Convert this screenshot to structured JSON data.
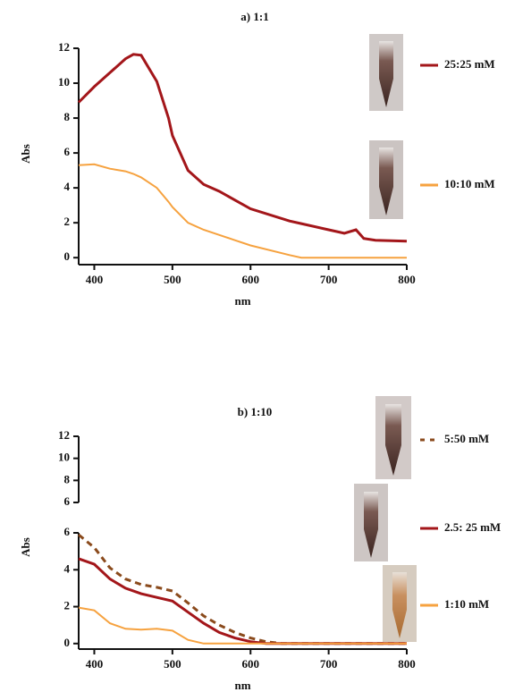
{
  "chart_data": [
    {
      "type": "line",
      "title": "a) 1:1",
      "y_label": "Abs",
      "x_label": "nm",
      "x": [
        380,
        400,
        420,
        440,
        450,
        460,
        480,
        495,
        500,
        520,
        540,
        560,
        580,
        600,
        650,
        665,
        700,
        720,
        735,
        745,
        760,
        800
      ],
      "series": [
        {
          "name": "25:25 mM",
          "color": "#a3161a",
          "linestyle": "solid",
          "values": [
            8.9,
            9.8,
            10.6,
            11.4,
            11.65,
            11.6,
            10.1,
            8.0,
            7.0,
            5.0,
            4.2,
            3.8,
            3.3,
            2.8,
            2.1,
            1.95,
            1.6,
            1.4,
            1.6,
            1.1,
            1.0,
            0.95
          ]
        },
        {
          "name": "10:10 mM",
          "color": "#f6a23f",
          "linestyle": "solid",
          "values": [
            5.3,
            5.35,
            5.1,
            4.95,
            4.8,
            4.6,
            4.0,
            3.2,
            2.9,
            2.0,
            1.6,
            1.3,
            1.0,
            0.7,
            0.15,
            0,
            0,
            0,
            0,
            0,
            0,
            0
          ]
        }
      ],
      "xlim": [
        380,
        800
      ],
      "xticks": [
        400,
        500,
        600,
        700,
        800
      ],
      "ylim": [
        -0.4,
        12
      ],
      "yticks": [
        0,
        2,
        4,
        6,
        8,
        10,
        12
      ]
    },
    {
      "type": "line",
      "title": "b) 1:10",
      "y_label": "Abs",
      "x_label": "nm",
      "x": [
        380,
        400,
        420,
        440,
        460,
        480,
        500,
        520,
        540,
        560,
        580,
        600,
        620,
        640,
        700,
        800
      ],
      "series": [
        {
          "name": "5:50 mM",
          "color": "#8a4a1c",
          "linestyle": "dashed",
          "values": [
            5.9,
            5.2,
            4.1,
            3.5,
            3.2,
            3.05,
            2.85,
            2.2,
            1.5,
            1.0,
            0.6,
            0.3,
            0.1,
            0,
            0,
            0
          ]
        },
        {
          "name": "2.5: 25 mM",
          "color": "#a3161a",
          "linestyle": "solid",
          "values": [
            4.6,
            4.3,
            3.5,
            3.0,
            2.7,
            2.5,
            2.3,
            1.7,
            1.1,
            0.6,
            0.3,
            0.1,
            0,
            0,
            0,
            0
          ]
        },
        {
          "name": "1:10 mM",
          "color": "#f6a23f",
          "linestyle": "solid",
          "values": [
            1.95,
            1.8,
            1.1,
            0.8,
            0.75,
            0.8,
            0.7,
            0.2,
            0,
            0,
            0,
            0,
            0,
            0,
            0,
            0
          ]
        }
      ],
      "xlim": [
        380,
        800
      ],
      "xticks": [
        400,
        500,
        600,
        700,
        800
      ],
      "ylim": [
        -0.3,
        6
      ],
      "yticks": [
        0,
        2,
        4,
        6
      ],
      "ylim_upper": [
        6,
        12
      ],
      "yticks_upper": [
        6,
        8,
        10,
        12
      ]
    }
  ]
}
